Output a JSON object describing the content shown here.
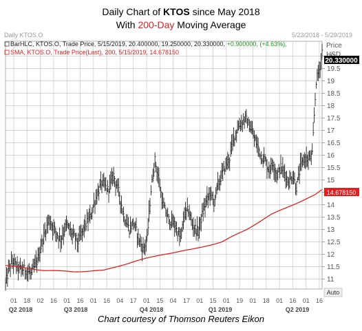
{
  "title": {
    "line1_prefix": "Daily Chart of ",
    "line1_ticker": "KTOS",
    "line1_suffix": " since May 2018",
    "line2_prefix": "With ",
    "line2_highlight": "200-Day",
    "line2_suffix": " Moving Average"
  },
  "chart_header": {
    "name": "Daily KTOS.O",
    "date_range": "5/23/2018 - 5/29/2019",
    "price_label": "Price",
    "currency_label": "USD"
  },
  "legend": {
    "bar_label": "BarHLC, KTOS.O, Trade Price, 5/15/2019, 20.400000, 19.250000, 20.330000, ",
    "bar_change": "+0.900000, (+4.63%),",
    "sma_label": "SMA, KTOS.O, Trade Price(Last),  200,  5/15/2019, 14.678150"
  },
  "price_tags": {
    "last": "20.330000",
    "sma": "14.678150"
  },
  "auto_label": "Auto",
  "credit": "Chart courtesy of Thomson Reuters Eikon",
  "colors": {
    "bars": "#222222",
    "sma": "#e02020",
    "grid": "#c8c8c8",
    "axis_text": "#555555",
    "header_text": "#999999",
    "change_positive": "#1a9a1a"
  },
  "chart_data": {
    "type": "bar",
    "subtype": "hlc",
    "y_ticks": [
      "11",
      "11.5",
      "12",
      "12.5",
      "13",
      "13.5",
      "14",
      "14.5",
      "15",
      "15.5",
      "16",
      "16.5",
      "17",
      "17.5",
      "18",
      "18.5",
      "19",
      "19.5",
      "20"
    ],
    "ylim": [
      10.6,
      20.6
    ],
    "x_ticks": [
      "01",
      "18",
      "02",
      "16",
      "01",
      "16",
      "01",
      "16",
      "04",
      "17",
      "01",
      "15",
      "04",
      "17",
      "01",
      "15",
      "01",
      "19",
      "01",
      "18",
      "01",
      "16",
      "01",
      "16"
    ],
    "x_periods": [
      "Q2 2018",
      "Q3 2018",
      "Q4 2018",
      "Q1 2019",
      "Q2 2019"
    ],
    "close_anchors": [
      [
        0,
        10.8
      ],
      [
        4,
        11.5
      ],
      [
        8,
        11.7
      ],
      [
        14,
        11.4
      ],
      [
        20,
        11.4
      ],
      [
        26,
        11.2
      ],
      [
        32,
        11.7
      ],
      [
        38,
        12.6
      ],
      [
        44,
        13.4
      ],
      [
        50,
        13.0
      ],
      [
        56,
        12.6
      ],
      [
        62,
        13.2
      ],
      [
        68,
        12.8
      ],
      [
        74,
        12.5
      ],
      [
        80,
        13.1
      ],
      [
        86,
        13.5
      ],
      [
        92,
        14.3
      ],
      [
        98,
        14.9
      ],
      [
        104,
        14.6
      ],
      [
        110,
        15.2
      ],
      [
        116,
        14.4
      ],
      [
        120,
        13.6
      ],
      [
        126,
        13.0
      ],
      [
        130,
        13.3
      ],
      [
        136,
        12.6
      ],
      [
        140,
        12.2
      ],
      [
        144,
        12.6
      ],
      [
        148,
        14.6
      ],
      [
        152,
        15.8
      ],
      [
        156,
        15.0
      ],
      [
        160,
        14.0
      ],
      [
        166,
        13.4
      ],
      [
        172,
        13.2
      ],
      [
        178,
        12.6
      ],
      [
        182,
        13.6
      ],
      [
        186,
        13.8
      ],
      [
        190,
        13.2
      ],
      [
        196,
        12.9
      ],
      [
        200,
        13.6
      ],
      [
        204,
        14.1
      ],
      [
        208,
        14.5
      ],
      [
        212,
        14.1
      ],
      [
        216,
        14.8
      ],
      [
        220,
        15.2
      ],
      [
        224,
        15.6
      ],
      [
        228,
        15.9
      ],
      [
        232,
        16.7
      ],
      [
        236,
        17.1
      ],
      [
        240,
        17.3
      ],
      [
        244,
        17.5
      ],
      [
        248,
        17.2
      ],
      [
        252,
        16.8
      ],
      [
        256,
        16.4
      ],
      [
        260,
        16.0
      ],
      [
        264,
        15.8
      ],
      [
        268,
        15.4
      ],
      [
        272,
        15.7
      ],
      [
        276,
        15.2
      ],
      [
        280,
        15.5
      ],
      [
        284,
        15.3
      ],
      [
        288,
        14.9
      ],
      [
        292,
        15.2
      ],
      [
        296,
        14.7
      ],
      [
        300,
        15.5
      ],
      [
        304,
        15.9
      ],
      [
        308,
        15.8
      ],
      [
        312,
        16.0
      ],
      [
        314,
        17.6
      ],
      [
        316,
        19.0
      ],
      [
        320,
        19.6
      ],
      [
        322,
        20.2
      ]
    ],
    "sma_anchors": [
      [
        0,
        11.55
      ],
      [
        20,
        11.45
      ],
      [
        40,
        11.35
      ],
      [
        70,
        11.3
      ],
      [
        100,
        11.35
      ],
      [
        130,
        11.7
      ],
      [
        160,
        12.0
      ],
      [
        190,
        12.2
      ],
      [
        220,
        12.5
      ],
      [
        245,
        13.0
      ],
      [
        270,
        13.6
      ],
      [
        295,
        14.05
      ],
      [
        315,
        14.4
      ],
      [
        322,
        14.6
      ]
    ]
  }
}
